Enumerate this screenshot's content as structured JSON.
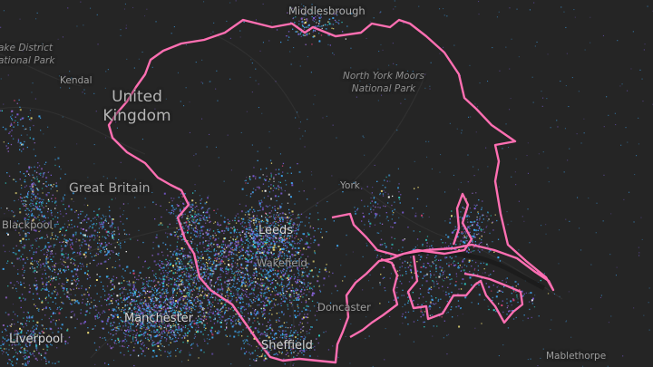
{
  "map": {
    "boundary_color": "#ff6fb2",
    "dot_colors": [
      "#3fa9f5",
      "#7b5cd6",
      "#9b6bd9",
      "#2fd0c9",
      "#f2e27a",
      "#ffffff",
      "#e0457b"
    ],
    "base_color": "#252525"
  },
  "labels": {
    "middlesbrough": "Middlesbrough",
    "lake_district_1": "ake District",
    "lake_district_2": "ational Park",
    "kendal": "Kendal",
    "united": "United",
    "kingdom": "Kingdom",
    "north_york_moors_1": "North York Moors",
    "north_york_moors_2": "National Park",
    "great_britain": "Great Britain",
    "york": "York",
    "blackpool": "Blackpool",
    "leeds": "Leeds",
    "wakefield": "Wakefield",
    "doncaster": "Doncaster",
    "manchester": "Manchester",
    "liverpool": "Liverpool",
    "sheffield": "Sheffield",
    "mablethorpe": "Mablethorpe"
  }
}
